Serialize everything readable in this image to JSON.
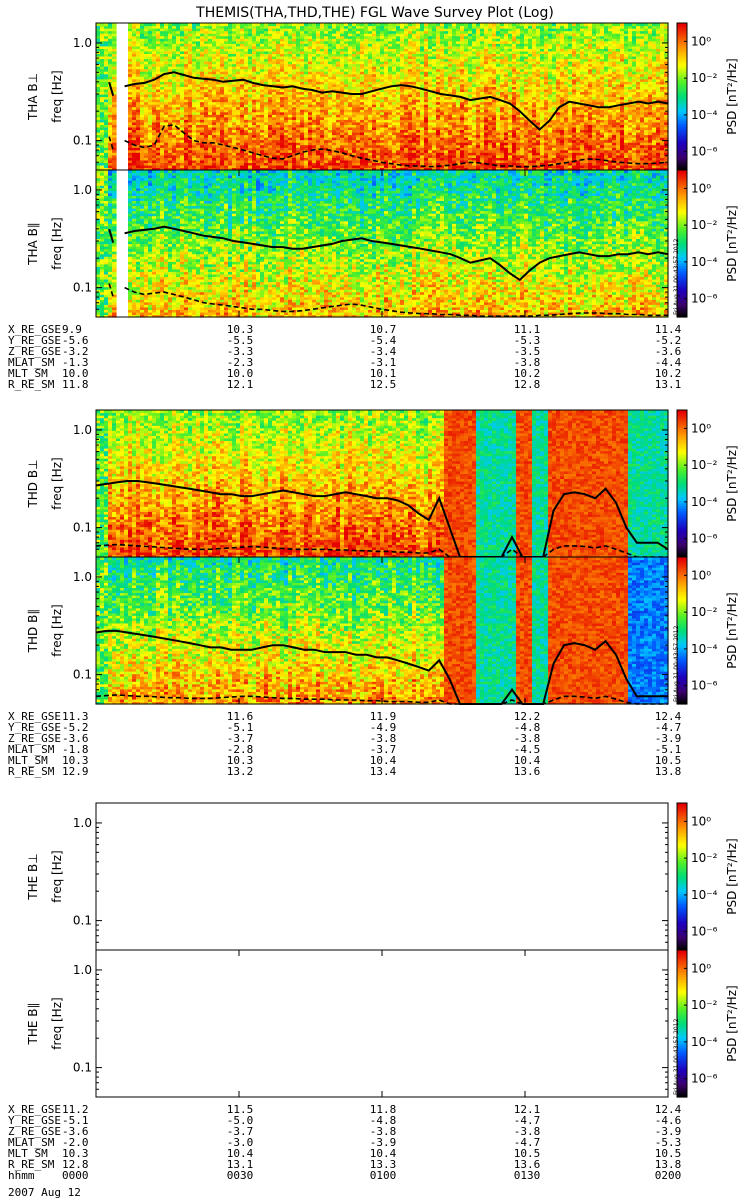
{
  "title": "THEMIS(THA,THD,THE) FGL Wave Survey Plot (Log)",
  "colorbar": {
    "label": "PSD [nT²/Hz]",
    "tick_labels": [
      "10⁰",
      "10⁻²",
      "10⁻⁴",
      "10⁻⁶"
    ],
    "tick_exponents": [
      0,
      -2,
      -4,
      -6
    ],
    "range_exponent": [
      -7,
      1
    ]
  },
  "stamp": "Fri Aug 31 00:43:57 2012",
  "chart_data": [
    {
      "type": "heatmap",
      "probe": "THA",
      "panels": [
        {
          "ylabel": "THA B⊥",
          "yunit": "freq [Hz]",
          "ytick_labels": [
            "1.0",
            "0.1"
          ],
          "yticks": [
            1.0,
            0.1
          ],
          "ylim": [
            0.05,
            1.6
          ],
          "level": 0.95,
          "has_data": true,
          "data_gap": [
            0.03,
            0.05
          ],
          "solid": [
            0.36,
            0.38,
            0.39,
            0.42,
            0.48,
            0.5,
            0.47,
            0.44,
            0.43,
            0.42,
            0.4,
            0.41,
            0.42,
            0.39,
            0.37,
            0.36,
            0.35,
            0.36,
            0.34,
            0.33,
            0.31,
            0.32,
            0.31,
            0.3,
            0.3,
            0.32,
            0.34,
            0.36,
            0.37,
            0.36,
            0.34,
            0.32,
            0.3,
            0.29,
            0.28,
            0.26,
            0.27,
            0.28,
            0.26,
            0.24,
            0.2,
            0.16,
            0.13,
            0.16,
            0.22,
            0.25,
            0.24,
            0.23,
            0.22,
            0.22,
            0.23,
            0.24,
            0.25,
            0.24,
            0.25,
            0.24
          ],
          "dashed": [
            0.1,
            0.09,
            0.085,
            0.09,
            0.14,
            0.145,
            0.12,
            0.1,
            0.095,
            0.095,
            0.09,
            0.085,
            0.08,
            0.075,
            0.07,
            0.066,
            0.065,
            0.07,
            0.076,
            0.08,
            0.082,
            0.079,
            0.075,
            0.07,
            0.066,
            0.063,
            0.06,
            0.058,
            0.056,
            0.055,
            0.055,
            0.054,
            0.055,
            0.056,
            0.058,
            0.06,
            0.059,
            0.057,
            0.055,
            0.055,
            0.054,
            0.054,
            0.055,
            0.056,
            0.058,
            0.06,
            0.063,
            0.065,
            0.064,
            0.062,
            0.06,
            0.059,
            0.058,
            0.058,
            0.059,
            0.06
          ]
        },
        {
          "ylabel": "THA B∥",
          "yunit": "freq [Hz]",
          "ytick_labels": [
            "1.0",
            "0.1"
          ],
          "yticks": [
            1.0,
            0.1
          ],
          "ylim": [
            0.05,
            1.6
          ],
          "level": 0.7,
          "has_data": true,
          "data_gap": [
            0.03,
            0.05
          ],
          "solid": [
            0.36,
            0.38,
            0.39,
            0.4,
            0.42,
            0.4,
            0.38,
            0.36,
            0.34,
            0.33,
            0.32,
            0.3,
            0.29,
            0.28,
            0.27,
            0.26,
            0.26,
            0.25,
            0.25,
            0.26,
            0.27,
            0.28,
            0.3,
            0.31,
            0.32,
            0.3,
            0.29,
            0.28,
            0.27,
            0.26,
            0.25,
            0.24,
            0.23,
            0.22,
            0.2,
            0.18,
            0.19,
            0.2,
            0.17,
            0.14,
            0.12,
            0.15,
            0.18,
            0.2,
            0.21,
            0.22,
            0.23,
            0.22,
            0.21,
            0.21,
            0.22,
            0.22,
            0.23,
            0.22,
            0.23,
            0.22
          ],
          "dashed": [
            0.1,
            0.09,
            0.085,
            0.088,
            0.09,
            0.085,
            0.08,
            0.075,
            0.07,
            0.068,
            0.066,
            0.064,
            0.062,
            0.06,
            0.06,
            0.058,
            0.057,
            0.057,
            0.058,
            0.06,
            0.062,
            0.064,
            0.066,
            0.068,
            0.066,
            0.063,
            0.06,
            0.058,
            0.056,
            0.055,
            0.054,
            0.054,
            0.053,
            0.053,
            0.052,
            0.052,
            0.051,
            0.051,
            0.051,
            0.051,
            0.051,
            0.051,
            0.052,
            0.052,
            0.053,
            0.054,
            0.055,
            0.055,
            0.055,
            0.054,
            0.054,
            0.053,
            0.053,
            0.052,
            0.052,
            0.052
          ]
        }
      ],
      "ephemeris": [
        {
          "name": "X_RE_GSE",
          "values": [
            "9.9",
            "10.3",
            "10.7",
            "11.1",
            "11.4"
          ]
        },
        {
          "name": "Y_RE_GSE",
          "values": [
            "-5.6",
            "-5.5",
            "-5.4",
            "-5.3",
            "-5.2"
          ]
        },
        {
          "name": "Z_RE_GSE",
          "values": [
            "-3.2",
            "-3.3",
            "-3.4",
            "-3.5",
            "-3.6"
          ]
        },
        {
          "name": "MLAT_SM",
          "values": [
            "-1.3",
            "-2.3",
            "-3.1",
            "-3.8",
            "-4.4"
          ]
        },
        {
          "name": "MLT_SM",
          "values": [
            "10.0",
            "10.0",
            "10.1",
            "10.2",
            "10.2"
          ]
        },
        {
          "name": "R_RE_SM",
          "values": [
            "11.8",
            "12.1",
            "12.5",
            "12.8",
            "13.1"
          ]
        }
      ]
    },
    {
      "type": "heatmap",
      "probe": "THD",
      "panels": [
        {
          "ylabel": "THD B⊥",
          "yunit": "freq [Hz]",
          "ytick_labels": [
            "1.0",
            "0.1"
          ],
          "yticks": [
            1.0,
            0.1
          ],
          "ylim": [
            0.05,
            1.6
          ],
          "level": 0.95,
          "has_data": true,
          "burst": true,
          "solid": [
            0.27,
            0.28,
            0.29,
            0.3,
            0.3,
            0.29,
            0.28,
            0.27,
            0.26,
            0.25,
            0.24,
            0.23,
            0.22,
            0.22,
            0.21,
            0.21,
            0.22,
            0.23,
            0.24,
            0.23,
            0.22,
            0.21,
            0.21,
            0.22,
            0.23,
            0.22,
            0.21,
            0.2,
            0.2,
            0.19,
            0.17,
            0.14,
            0.12,
            0.2,
            0.1,
            0.05,
            0.05,
            0.05,
            0.05,
            0.05,
            0.08,
            0.05,
            0.05,
            0.05,
            0.15,
            0.22,
            0.23,
            0.22,
            0.2,
            0.25,
            0.18,
            0.1,
            0.07,
            0.07,
            0.07,
            0.06
          ],
          "dashed": [
            0.065,
            0.066,
            0.067,
            0.066,
            0.065,
            0.064,
            0.063,
            0.062,
            0.061,
            0.06,
            0.06,
            0.06,
            0.061,
            0.062,
            0.063,
            0.064,
            0.063,
            0.062,
            0.061,
            0.06,
            0.06,
            0.06,
            0.06,
            0.059,
            0.059,
            0.058,
            0.058,
            0.057,
            0.057,
            0.056,
            0.056,
            0.055,
            0.055,
            0.06,
            0.05,
            0.05,
            0.05,
            0.05,
            0.05,
            0.05,
            0.06,
            0.05,
            0.05,
            0.05,
            0.06,
            0.065,
            0.065,
            0.064,
            0.062,
            0.065,
            0.06,
            0.055,
            0.05,
            0.05,
            0.05,
            0.05
          ]
        },
        {
          "ylabel": "THD B∥",
          "yunit": "freq [Hz]",
          "ytick_labels": [
            "1.0",
            "0.1"
          ],
          "yticks": [
            1.0,
            0.1
          ],
          "ylim": [
            0.05,
            1.6
          ],
          "level": 0.75,
          "has_data": true,
          "burst": true,
          "solid": [
            0.27,
            0.28,
            0.28,
            0.27,
            0.26,
            0.25,
            0.24,
            0.23,
            0.22,
            0.21,
            0.2,
            0.19,
            0.19,
            0.18,
            0.18,
            0.18,
            0.19,
            0.2,
            0.2,
            0.19,
            0.18,
            0.18,
            0.17,
            0.17,
            0.17,
            0.16,
            0.16,
            0.15,
            0.15,
            0.14,
            0.13,
            0.12,
            0.11,
            0.14,
            0.09,
            0.05,
            0.05,
            0.05,
            0.05,
            0.05,
            0.07,
            0.05,
            0.05,
            0.05,
            0.13,
            0.2,
            0.21,
            0.2,
            0.18,
            0.22,
            0.16,
            0.09,
            0.06,
            0.06,
            0.06,
            0.06
          ],
          "dashed": [
            0.06,
            0.061,
            0.062,
            0.061,
            0.06,
            0.06,
            0.059,
            0.058,
            0.058,
            0.057,
            0.057,
            0.057,
            0.058,
            0.059,
            0.06,
            0.06,
            0.059,
            0.058,
            0.057,
            0.057,
            0.056,
            0.056,
            0.056,
            0.055,
            0.055,
            0.055,
            0.054,
            0.054,
            0.053,
            0.053,
            0.053,
            0.052,
            0.052,
            0.055,
            0.05,
            0.05,
            0.05,
            0.05,
            0.05,
            0.05,
            0.055,
            0.05,
            0.05,
            0.05,
            0.055,
            0.06,
            0.06,
            0.059,
            0.057,
            0.06,
            0.056,
            0.052,
            0.05,
            0.05,
            0.05,
            0.05
          ]
        }
      ],
      "ephemeris": [
        {
          "name": "X_RE_GSE",
          "values": [
            "11.3",
            "11.6",
            "11.9",
            "12.2",
            "12.4"
          ]
        },
        {
          "name": "Y_RE_GSE",
          "values": [
            "-5.2",
            "-5.1",
            "-4.9",
            "-4.8",
            "-4.7"
          ]
        },
        {
          "name": "Z_RE_GSE",
          "values": [
            "-3.6",
            "-3.7",
            "-3.8",
            "-3.8",
            "-3.9"
          ]
        },
        {
          "name": "MLAT_SM",
          "values": [
            "-1.8",
            "-2.8",
            "-3.7",
            "-4.5",
            "-5.1"
          ]
        },
        {
          "name": "MLT_SM",
          "values": [
            "10.3",
            "10.3",
            "10.4",
            "10.4",
            "10.5"
          ]
        },
        {
          "name": "R_RE_SM",
          "values": [
            "12.9",
            "13.2",
            "13.4",
            "13.6",
            "13.8"
          ]
        }
      ]
    },
    {
      "type": "heatmap",
      "probe": "THE",
      "panels": [
        {
          "ylabel": "THE B⊥",
          "yunit": "freq [Hz]",
          "ytick_labels": [
            "1.0",
            "0.1"
          ],
          "yticks": [
            1.0,
            0.1
          ],
          "ylim": [
            0.05,
            1.6
          ],
          "has_data": false
        },
        {
          "ylabel": "THE B∥",
          "yunit": "freq [Hz]",
          "ytick_labels": [
            "1.0",
            "0.1"
          ],
          "yticks": [
            1.0,
            0.1
          ],
          "ylim": [
            0.05,
            1.6
          ],
          "has_data": false
        }
      ],
      "ephemeris": [
        {
          "name": "X_RE_GSE",
          "values": [
            "11.2",
            "11.5",
            "11.8",
            "12.1",
            "12.4"
          ]
        },
        {
          "name": "Y_RE_GSE",
          "values": [
            "-5.1",
            "-5.0",
            "-4.8",
            "-4.7",
            "-4.6"
          ]
        },
        {
          "name": "Z_RE_GSE",
          "values": [
            "-3.6",
            "-3.7",
            "-3.8",
            "-3.8",
            "-3.9"
          ]
        },
        {
          "name": "MLAT_SM",
          "values": [
            "-2.0",
            "-3.0",
            "-3.9",
            "-4.7",
            "-5.3"
          ]
        },
        {
          "name": "MLT_SM",
          "values": [
            "10.3",
            "10.4",
            "10.4",
            "10.5",
            "10.5"
          ]
        },
        {
          "name": "R_RE_SM",
          "values": [
            "12.8",
            "13.1",
            "13.3",
            "13.6",
            "13.8"
          ]
        },
        {
          "name": "hhmm",
          "values": [
            "0000",
            "0030",
            "0100",
            "0130",
            "0200"
          ]
        }
      ],
      "date": "2007 Aug 12"
    }
  ]
}
